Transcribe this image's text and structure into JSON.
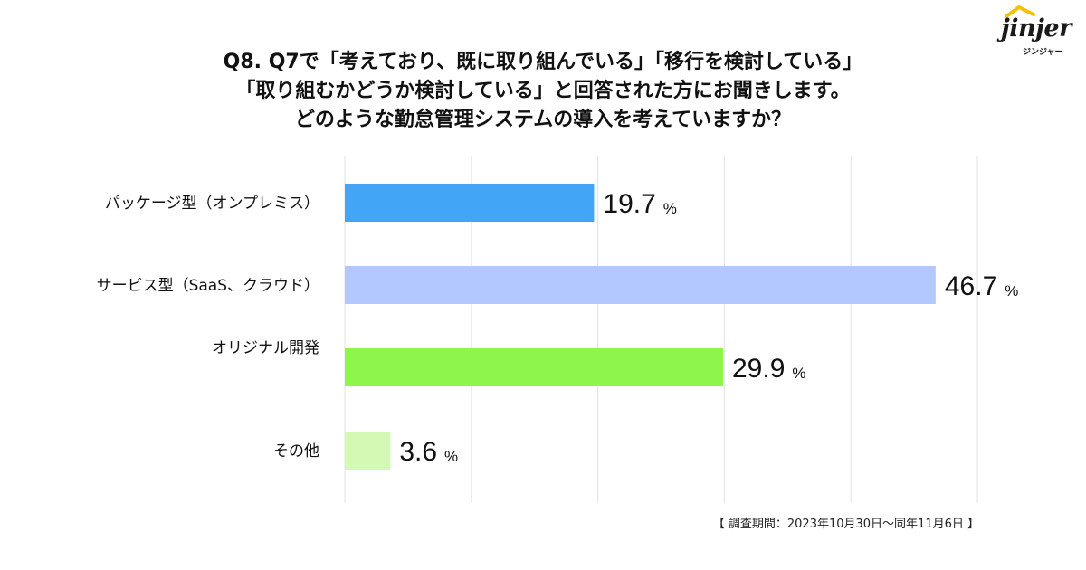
{
  "logo": {
    "wordmark": "jinjer",
    "sub": "ジンジャー"
  },
  "title": {
    "line1": "Q8. Q7で「考えており、既に取り組んでいる」「移行を検討している」",
    "line2": "「取り組むかどうか検討している」と回答された方にお聞きします。",
    "line3": "どのような勤怠管理システムの導入を考えていますか？"
  },
  "chart_data": {
    "type": "bar",
    "orientation": "horizontal",
    "categories": [
      "パッケージ型（オンプレミス）",
      "サービス型（SaaS、クラウド）",
      "オリジナル開発",
      "その他"
    ],
    "values": [
      19.7,
      46.7,
      29.9,
      3.6
    ],
    "value_labels": [
      "19.7",
      "46.7",
      "29.9",
      "3.6"
    ],
    "unit": "%",
    "colors": [
      "#42a5f5",
      "#b3c8ff",
      "#8ef54a",
      "#d4f9b5"
    ],
    "xlim": [
      0,
      50
    ],
    "grid_step": 10,
    "grid": true,
    "title": "どのような勤怠管理システムの導入を考えていますか？"
  },
  "footnote": "【 調査期間：2023年10月30日〜同年11月6日 】"
}
